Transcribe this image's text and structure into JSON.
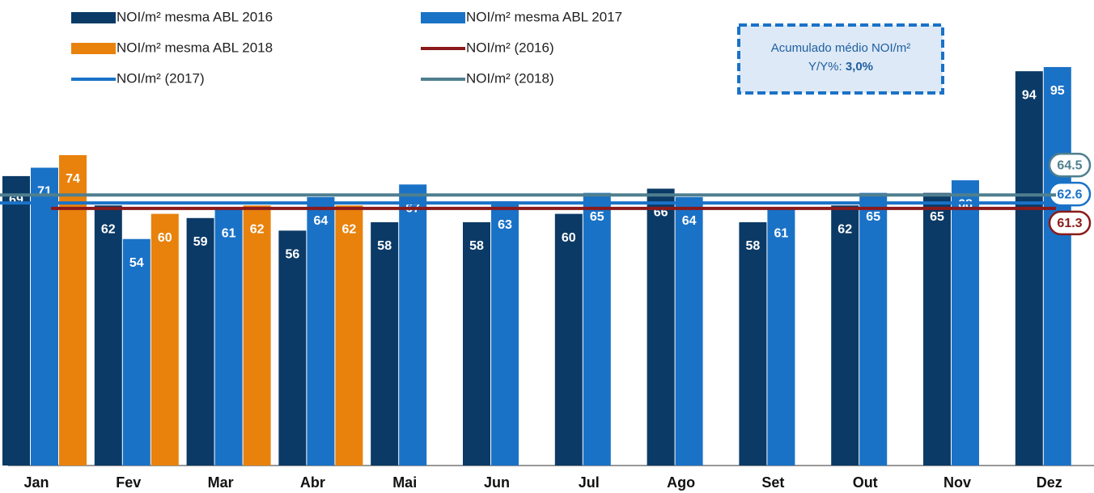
{
  "chart_data": {
    "type": "bar",
    "categories": [
      "Jan",
      "Fev",
      "Mar",
      "Abr",
      "Mai",
      "Jun",
      "Jul",
      "Ago",
      "Set",
      "Out",
      "Nov",
      "Dez"
    ],
    "series": [
      {
        "name": "NOI/m² mesma ABL 2016",
        "color": "#0b3a66",
        "values": [
          69,
          62,
          59,
          56,
          58,
          58,
          60,
          66,
          58,
          62,
          65,
          94
        ]
      },
      {
        "name": "NOI/m² mesma ABL 2017",
        "color": "#1a72c7",
        "values": [
          71,
          54,
          61,
          64,
          67,
          63,
          65,
          64,
          61,
          65,
          68,
          95
        ]
      },
      {
        "name": "NOI/m² mesma ABL 2018",
        "color": "#e8820c",
        "values": [
          74,
          60,
          62,
          62,
          null,
          null,
          null,
          null,
          null,
          null,
          null,
          null
        ]
      }
    ],
    "reference_lines": [
      {
        "name": "NOI/m² (2016)",
        "color": "#8b1a1a",
        "value": 61.3
      },
      {
        "name": "NOI/m² (2017)",
        "color": "#1a72c7",
        "value": 62.6
      },
      {
        "name": "NOI/m² (2018)",
        "color": "#4f7f8f",
        "value": 64.5
      }
    ],
    "ylim": [
      0,
      100
    ],
    "annotation": {
      "line1": "Acumulado médio NOI/m²",
      "line2": "Y/Y%: ",
      "value": "3,0%"
    }
  }
}
